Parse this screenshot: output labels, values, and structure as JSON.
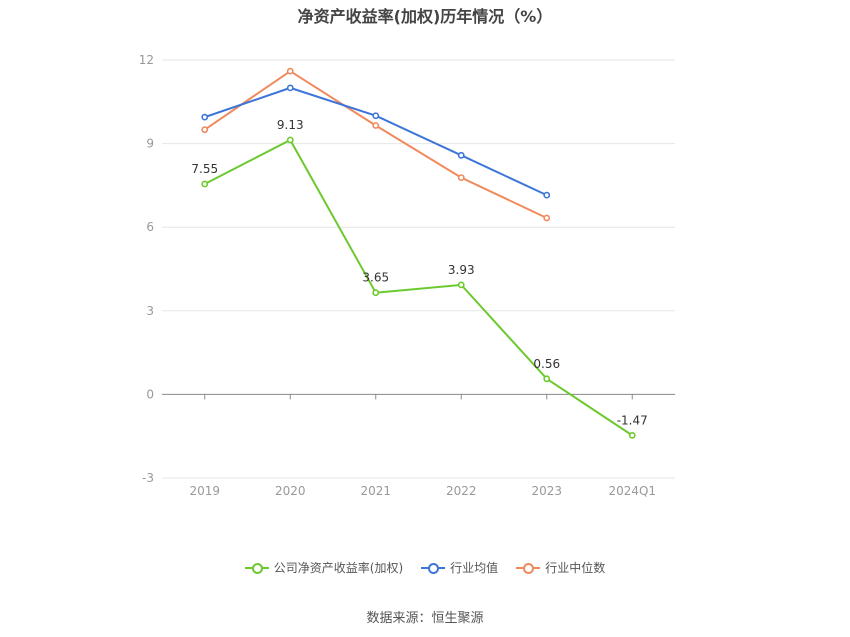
{
  "chart_data": {
    "type": "line",
    "title": "净资产收益率(加权)历年情况（%）",
    "categories": [
      "2019",
      "2020",
      "2021",
      "2022",
      "2023",
      "2024Q1"
    ],
    "y_ticks": [
      -3,
      0,
      3,
      6,
      9,
      12
    ],
    "ylim": [
      -3,
      12
    ],
    "grid": true,
    "legend_position": "bottom",
    "series": [
      {
        "name": "公司净资产收益率(加权)",
        "color": "#6cc92e",
        "show_labels": true,
        "values": [
          7.55,
          9.13,
          3.65,
          3.93,
          0.56,
          -1.47
        ]
      },
      {
        "name": "行业均值",
        "color": "#3d76d8",
        "show_labels": false,
        "values": [
          9.95,
          11.0,
          10.0,
          8.58,
          7.15,
          null
        ]
      },
      {
        "name": "行业中位数",
        "color": "#f08a5d",
        "show_labels": false,
        "values": [
          9.5,
          11.6,
          9.65,
          7.78,
          6.33,
          null
        ]
      }
    ],
    "source": "数据来源：恒生聚源"
  }
}
